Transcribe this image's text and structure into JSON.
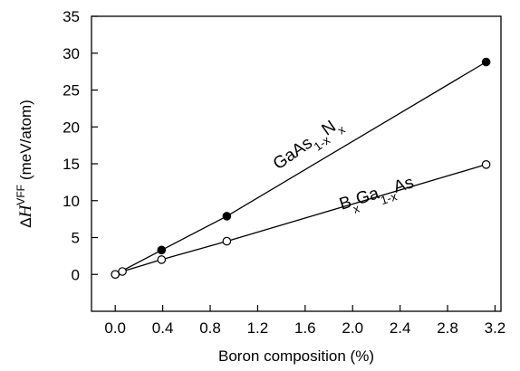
{
  "chart_data": {
    "type": "line",
    "title": "",
    "xlabel": "Boron composition (%)",
    "ylabel": {
      "prefix": "Δ",
      "symbol": "H",
      "superscript": "VFF",
      "unit": "(meV/atom)"
    },
    "xlim": [
      -0.2,
      3.25
    ],
    "ylim": [
      -5,
      35
    ],
    "xticks": [
      0.0,
      0.4,
      0.8,
      1.2,
      1.6,
      2.0,
      2.4,
      2.8,
      3.2
    ],
    "xtick_labels": [
      "0.0",
      "0.4",
      "0.8",
      "1.2",
      "1.6",
      "2.0",
      "2.4",
      "2.8",
      "3.2"
    ],
    "yticks": [
      0,
      5,
      10,
      15,
      20,
      25,
      30,
      35
    ],
    "ytick_labels": [
      "0",
      "5",
      "10",
      "15",
      "20",
      "25",
      "30",
      "35"
    ],
    "grid": false,
    "legend": "none",
    "series": [
      {
        "label_parts": [
          {
            "t": "Ga",
            "s": "normal"
          },
          {
            "t": "As",
            "s": "normal"
          },
          {
            "t": "1-x",
            "s": "sub"
          },
          {
            "t": "N",
            "s": "normal"
          },
          {
            "t": "x",
            "s": "sub"
          }
        ],
        "marker": "filled",
        "x": [
          0.0,
          0.39,
          0.94,
          3.125
        ],
        "y": [
          0.0,
          3.3,
          7.9,
          28.8
        ]
      },
      {
        "label_parts": [
          {
            "t": "B",
            "s": "normal"
          },
          {
            "t": "x",
            "s": "sub"
          },
          {
            "t": "Ga",
            "s": "normal"
          },
          {
            "t": "1-x",
            "s": "sub"
          },
          {
            "t": "As",
            "s": "normal"
          }
        ],
        "marker": "open",
        "x": [
          0.0,
          0.06,
          0.39,
          0.94,
          3.125
        ],
        "y": [
          0.0,
          0.4,
          2.0,
          4.5,
          14.9
        ]
      }
    ]
  }
}
